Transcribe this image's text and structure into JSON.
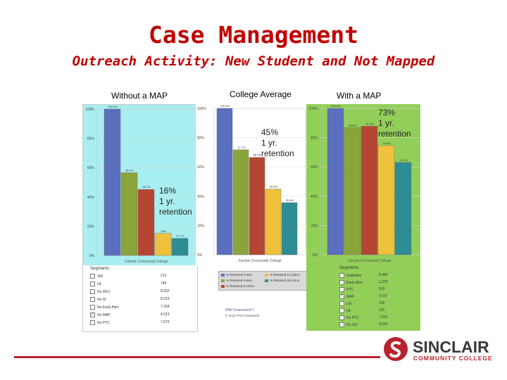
{
  "slide": {
    "title": "Case Management",
    "subtitle": "Outreach Activity: New Student and Not Mapped"
  },
  "columns": {
    "without_map": "Without a MAP",
    "college_average": "College Average",
    "with_map": "With a MAP"
  },
  "callouts": {
    "without_map": [
      "16%",
      "1 yr.",
      "retention"
    ],
    "college_average": [
      "45%",
      "1 yr.",
      "retention"
    ],
    "with_map": [
      "73%",
      "1 yr.",
      "retention"
    ]
  },
  "colors": {
    "title_red": "#c00000",
    "left_bg": "#a9eef0",
    "right_bg": "#92cf58",
    "bar_blue": "#5b6fbf",
    "bar_green": "#8aa43a",
    "bar_red": "#b54632",
    "bar_yellow": "#f0c13a",
    "bar_teal": "#2e8c95",
    "brand_red": "#b8232f"
  },
  "panel_footer": "Sinclair Community College",
  "segments_header": "Segments",
  "chart_data": [
    {
      "type": "bar",
      "name": "Without a MAP",
      "series": [
        {
          "values": [
            100,
            56.5,
            45.1,
            15,
            11.7
          ],
          "labels": [
            "100.0%",
            "56.5%",
            "45.1%",
            "15%",
            "11.7%"
          ]
        }
      ],
      "ylim": [
        0,
        100
      ],
      "yticks": [
        "100%",
        "80%",
        "60%",
        "40%",
        "20%",
        "0%"
      ]
    },
    {
      "type": "bar",
      "name": "College Average",
      "series": [
        {
          "values": [
            100,
            71.7,
            66.5,
            44.9,
            35.6
          ],
          "labels": [
            "100.0%",
            "71.7%",
            "66.5%",
            "44.9%",
            "35.6%"
          ]
        }
      ],
      "ylim": [
        0,
        100
      ],
      "yticks": [
        "100%",
        "80%",
        "60%",
        "40%",
        "20%",
        "0%"
      ],
      "legend": [
        "% Retained 0-3mo",
        "% Retained 3-6mo",
        "% Retained 6-12mo",
        "% Retained 12-18mo",
        "% Retained 18-24mo"
      ]
    },
    {
      "type": "bar",
      "name": "With a MAP",
      "series": [
        {
          "values": [
            100,
            86.8,
            87.8,
            74.6,
            63.1
          ],
          "labels": [
            "100.0%",
            "86.8%",
            "87.8%",
            "74.6%",
            "63.1%"
          ]
        }
      ],
      "ylim": [
        0,
        100
      ],
      "yticks": [
        "100%",
        "80%",
        "60%",
        "40%",
        "20%",
        "0%"
      ]
    }
  ],
  "segments_left": [
    {
      "label": "183",
      "value": "213",
      "checked": false
    },
    {
      "label": "IJL",
      "value": "749",
      "checked": false
    },
    {
      "label": "No DEV",
      "value": "8,262",
      "checked": false
    },
    {
      "label": "No IS",
      "value": "8,319",
      "checked": false
    },
    {
      "label": "No Early Alert",
      "value": "7,264",
      "checked": false
    },
    {
      "label": "No MAP",
      "value": "4,313",
      "checked": true
    },
    {
      "label": "No PTC",
      "value": "7,973",
      "checked": false
    }
  ],
  "segments_right": [
    {
      "label": "Institution",
      "value": "8,480",
      "checked": false
    },
    {
      "label": "Early Alert",
      "value": "1,220",
      "checked": false
    },
    {
      "label": "PTC",
      "value": "510",
      "checked": false
    },
    {
      "label": "MAP",
      "value": "4,167",
      "checked": true
    },
    {
      "label": "LEI",
      "value": "218",
      "checked": false
    },
    {
      "label": "IJL",
      "value": "120",
      "checked": false
    },
    {
      "label": "No PTC",
      "value": "7,262",
      "checked": false
    },
    {
      "label": "No LEI",
      "value": "8,262",
      "checked": false
    }
  ],
  "middle_footer": [
    "PAR Framework™",
    "© 2014 PAR Framework"
  ],
  "brand": {
    "name": "SINCLAIR",
    "tagline": "COMMUNITY COLLEGE"
  }
}
